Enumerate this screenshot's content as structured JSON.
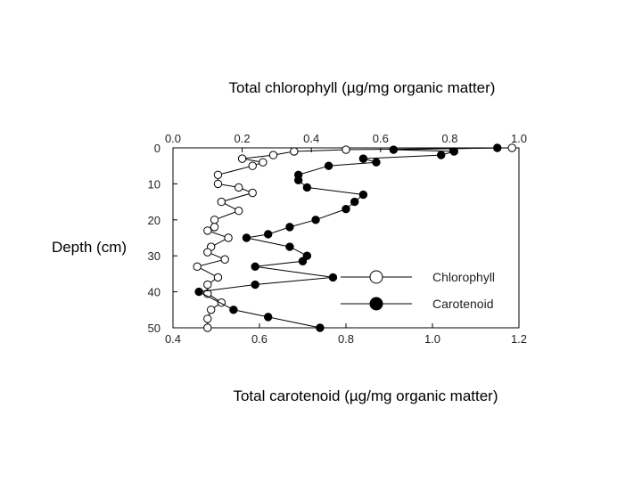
{
  "chart_data": {
    "type": "line",
    "title_top": "Total chlorophyll (µg/mg organic matter)",
    "xlabel_bottom": "Total carotenoid (µg/mg organic matter)",
    "ylabel": "Depth (cm)",
    "top_axis": {
      "range": [
        0.0,
        1.0
      ],
      "ticks": [
        "0.0",
        "0.2",
        "0.4",
        "0.6",
        "0.8",
        "1.0"
      ]
    },
    "bottom_axis": {
      "range": [
        0.4,
        1.2
      ],
      "ticks": [
        "0.4",
        "0.6",
        "0.8",
        "1.0",
        "1.2"
      ]
    },
    "y_axis": {
      "range": [
        0,
        50
      ],
      "inverted": true,
      "ticks": [
        "0",
        "10",
        "20",
        "30",
        "40",
        "50"
      ]
    },
    "grid": false,
    "legend_position": "right",
    "series": [
      {
        "name": "Chlorophyll",
        "axis": "top",
        "marker": "open-circle",
        "points": [
          [
            0.98,
            0
          ],
          [
            0.5,
            0.5
          ],
          [
            0.35,
            1
          ],
          [
            0.29,
            2
          ],
          [
            0.2,
            3
          ],
          [
            0.26,
            4
          ],
          [
            0.23,
            5
          ],
          [
            0.13,
            7.5
          ],
          [
            0.13,
            10
          ],
          [
            0.19,
            11
          ],
          [
            0.23,
            12.5
          ],
          [
            0.14,
            15
          ],
          [
            0.19,
            17.5
          ],
          [
            0.12,
            20
          ],
          [
            0.12,
            22
          ],
          [
            0.1,
            23
          ],
          [
            0.16,
            25
          ],
          [
            0.11,
            27.5
          ],
          [
            0.1,
            29
          ],
          [
            0.15,
            31
          ],
          [
            0.07,
            33
          ],
          [
            0.13,
            36
          ],
          [
            0.1,
            38
          ],
          [
            0.1,
            40.5
          ],
          [
            0.14,
            43
          ],
          [
            0.11,
            45
          ],
          [
            0.1,
            47.5
          ],
          [
            0.1,
            50
          ]
        ]
      },
      {
        "name": "Carotenoid",
        "axis": "bottom",
        "marker": "filled-circle",
        "points": [
          [
            1.15,
            0
          ],
          [
            0.91,
            0.5
          ],
          [
            1.05,
            1
          ],
          [
            1.02,
            2
          ],
          [
            0.84,
            3
          ],
          [
            0.87,
            4
          ],
          [
            0.76,
            5
          ],
          [
            0.69,
            7.5
          ],
          [
            0.69,
            9
          ],
          [
            0.71,
            11
          ],
          [
            0.84,
            13
          ],
          [
            0.82,
            15
          ],
          [
            0.8,
            17
          ],
          [
            0.73,
            20
          ],
          [
            0.67,
            22
          ],
          [
            0.62,
            24
          ],
          [
            0.57,
            25
          ],
          [
            0.67,
            27.5
          ],
          [
            0.71,
            30
          ],
          [
            0.7,
            31.5
          ],
          [
            0.59,
            33
          ],
          [
            0.77,
            36
          ],
          [
            0.59,
            38
          ],
          [
            0.46,
            40
          ],
          [
            0.54,
            45
          ],
          [
            0.62,
            47
          ],
          [
            0.74,
            50
          ]
        ]
      }
    ]
  }
}
